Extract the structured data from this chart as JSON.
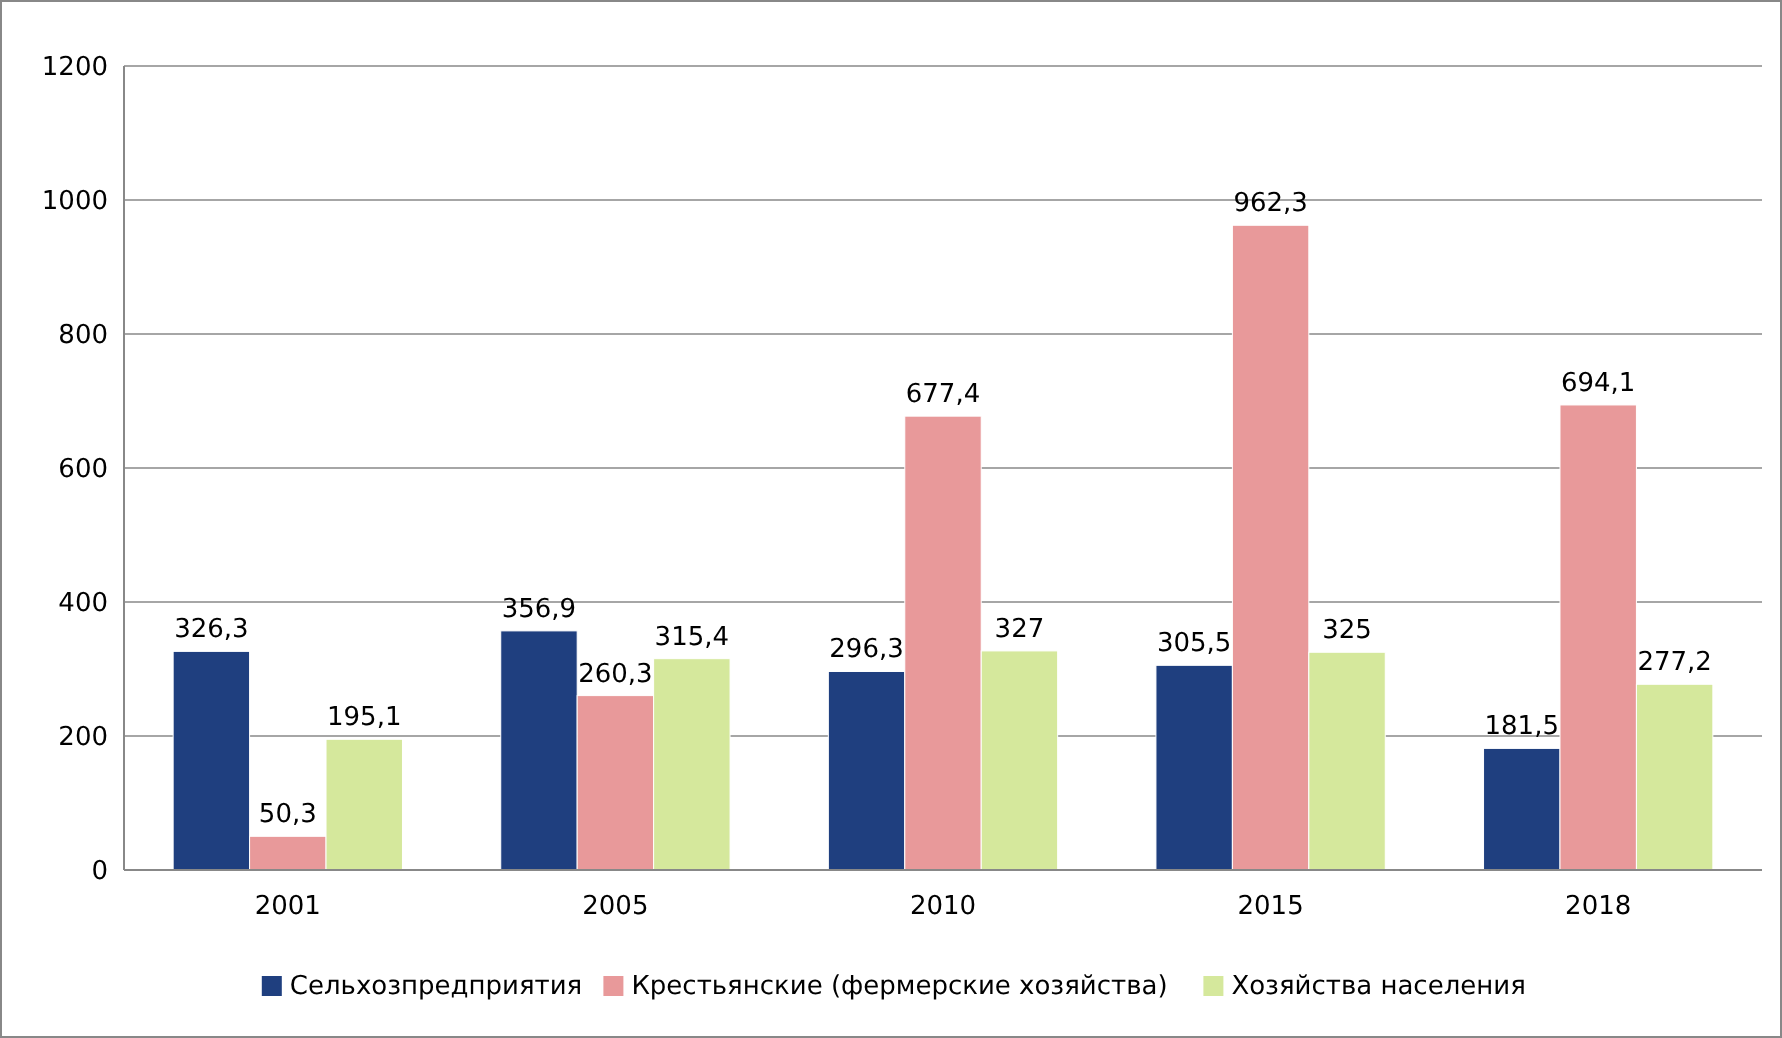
{
  "chart_data": {
    "type": "bar",
    "categories": [
      "2001",
      "2005",
      "2010",
      "2015",
      "2018"
    ],
    "series": [
      {
        "name": "Сельхозпредприятия",
        "color": "#1f3f7f",
        "values": [
          326.3,
          356.9,
          296.3,
          305.5,
          181.5
        ],
        "value_labels": [
          "326,3",
          "356,9",
          "296,3",
          "305,5",
          "181,5"
        ]
      },
      {
        "name": "Крестьянские (фермерские хозяйства)",
        "color": "#e8999a",
        "values": [
          50.3,
          260.3,
          677.4,
          962.3,
          694.1
        ],
        "value_labels": [
          "50,3",
          "260,3",
          "677,4",
          "962,3",
          "694,1"
        ]
      },
      {
        "name": "Хозяйства населения",
        "color": "#d5e89c",
        "values": [
          195.1,
          315.4,
          327,
          325,
          277.2
        ],
        "value_labels": [
          "195,1",
          "315,4",
          "327",
          "325",
          "277,2"
        ]
      }
    ],
    "ylim": [
      0,
      1200
    ],
    "yticks": [
      0,
      200,
      400,
      600,
      800,
      1000,
      1200
    ],
    "grid": "y",
    "legend": "bottom"
  }
}
